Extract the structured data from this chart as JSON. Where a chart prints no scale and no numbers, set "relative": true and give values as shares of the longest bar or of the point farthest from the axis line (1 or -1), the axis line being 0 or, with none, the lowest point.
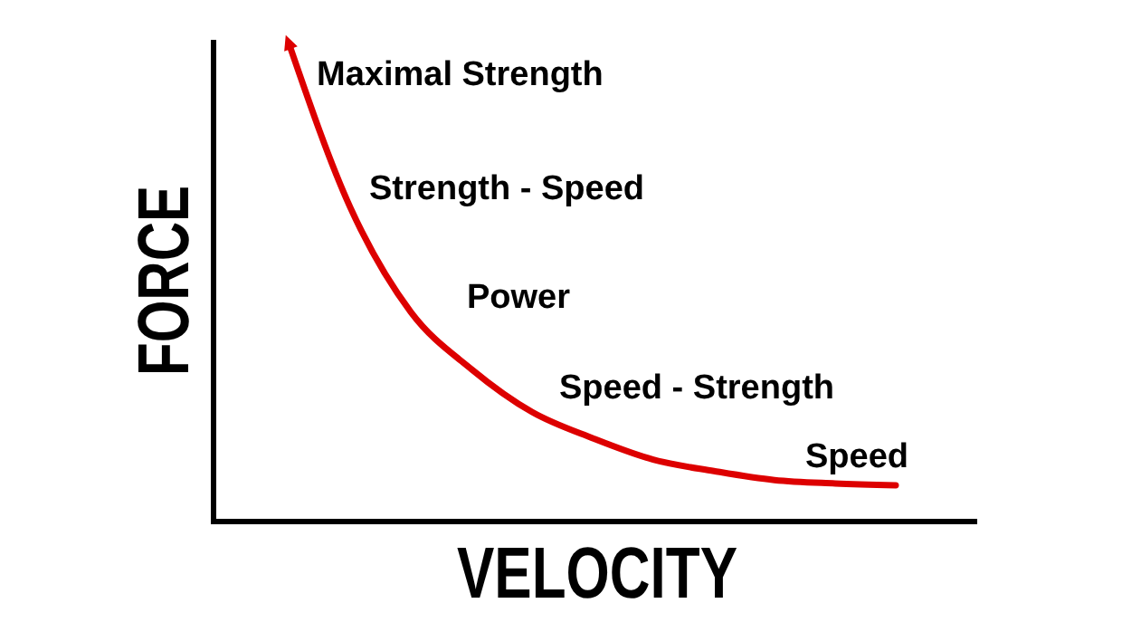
{
  "chart_data": {
    "type": "line",
    "relative": true,
    "xlabel": "VELOCITY",
    "ylabel": "FORCE",
    "categories": [
      null,
      null,
      null,
      null,
      null,
      null,
      null,
      null,
      null,
      null,
      null
    ],
    "series": [
      {
        "color": "#dd0000",
        "values": [
          1.0,
          0.66,
          0.44,
          0.32,
          0.23,
          0.175,
          0.13,
          0.106,
          0.087,
          0.08,
          0.076
        ]
      }
    ],
    "annotations": [
      "Maximal Strength",
      "Strength - Speed",
      "Power",
      "Speed - Strength",
      "Speed"
    ],
    "marker": "none",
    "line_style": "solid"
  }
}
